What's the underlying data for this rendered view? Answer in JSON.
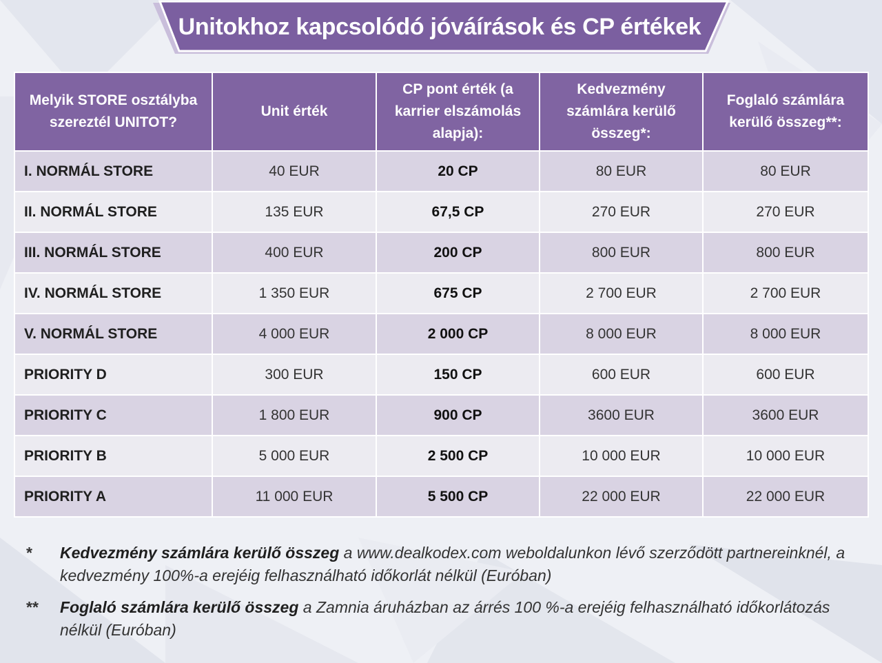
{
  "title": "Unitokhoz kapcsolódó jóváírások és CP értékek",
  "colors": {
    "header": "#8064a2",
    "row_odd": "#d9d3e3",
    "row_even": "#ecebf1"
  },
  "headers": [
    "Melyik STORE osztályba szereztél UNITOT?",
    "Unit érték",
    "CP pont érték (a karrier elszámolás alapja):",
    "Kedvezmény számlára kerülő összeg*:",
    "Foglaló számlára kerülő összeg**:"
  ],
  "rows": [
    {
      "store": "I. NORMÁL STORE",
      "unit": "40 EUR",
      "cp": "20 CP",
      "discount": "80 EUR",
      "deposit": "80 EUR"
    },
    {
      "store": "II. NORMÁL STORE",
      "unit": "135 EUR",
      "cp": "67,5 CP",
      "discount": "270 EUR",
      "deposit": "270 EUR"
    },
    {
      "store": "III. NORMÁL STORE",
      "unit": "400 EUR",
      "cp": "200 CP",
      "discount": "800 EUR",
      "deposit": "800 EUR"
    },
    {
      "store": "IV. NORMÁL STORE",
      "unit": "1 350 EUR",
      "cp": "675 CP",
      "discount": "2 700 EUR",
      "deposit": "2 700 EUR"
    },
    {
      "store": "V. NORMÁL STORE",
      "unit": "4 000 EUR",
      "cp": "2 000 CP",
      "discount": "8 000 EUR",
      "deposit": "8 000 EUR"
    },
    {
      "store": "PRIORITY D",
      "unit": "300 EUR",
      "cp": "150 CP",
      "discount": "600 EUR",
      "deposit": "600 EUR"
    },
    {
      "store": "PRIORITY C",
      "unit": "1 800 EUR",
      "cp": "900 CP",
      "discount": "3600 EUR",
      "deposit": "3600 EUR"
    },
    {
      "store": "PRIORITY B",
      "unit": "5 000 EUR",
      "cp": "2 500 CP",
      "discount": "10 000 EUR",
      "deposit": "10 000 EUR"
    },
    {
      "store": "PRIORITY A",
      "unit": "11 000 EUR",
      "cp": "5 500 CP",
      "discount": "22 000 EUR",
      "deposit": "22 000 EUR"
    }
  ],
  "notes": [
    {
      "mark": "*",
      "bold": "Kedvezmény számlára kerülő összeg",
      "text": " a www.dealkodex.com weboldalunkon lévő szerződött partnereinknél, a kedvezmény 100%-a erejéig felhasználható időkorlát nélkül (Euróban)"
    },
    {
      "mark": "**",
      "bold": "Foglaló számlára kerülő összeg",
      "text": " a Zamnia áruházban az árrés 100 %-a erejéig felhasználható időkorlátozás nélkül (Euróban)"
    }
  ]
}
